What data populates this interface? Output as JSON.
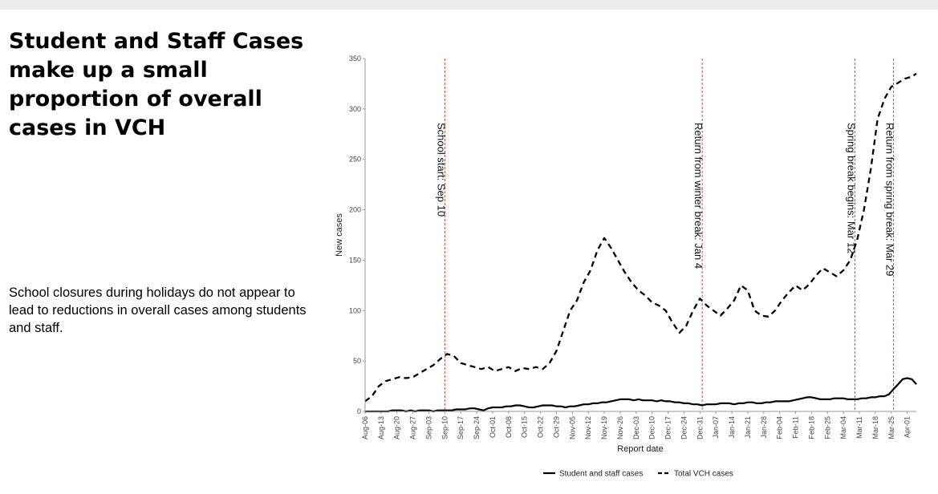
{
  "slide": {
    "title": "Student and Staff Cases make up a small proportion of overall cases in VCH",
    "subtitle": "School closures during holidays do not appear to lead to reductions in overall cases among students and staff."
  },
  "chart_data": {
    "type": "line",
    "xlabel": "Report date",
    "ylabel": "New cases",
    "ylim": [
      0,
      350
    ],
    "yticks": [
      0,
      50,
      100,
      150,
      200,
      250,
      300,
      350
    ],
    "xticks": [
      "Aug-06",
      "Aug-13",
      "Aug-20",
      "Aug-27",
      "Sep-03",
      "Sep-10",
      "Sep-17",
      "Sep-24",
      "Oct-01",
      "Oct-08",
      "Oct-15",
      "Oct-22",
      "Oct-29",
      "Nov-05",
      "Nov-12",
      "Nov-19",
      "Nov-26",
      "Dec-03",
      "Dec-10",
      "Dec-17",
      "Dec-24",
      "Dec-31",
      "Jan-07",
      "Jan-14",
      "Jan-21",
      "Jan-28",
      "Feb-04",
      "Feb-11",
      "Feb-18",
      "Feb-25",
      "Mar-04",
      "Mar-11",
      "Mar-18",
      "Mar-25",
      "Apr-01"
    ],
    "grid": false,
    "legend_position": "bottom",
    "series": [
      {
        "name": "Student and staff cases",
        "line_style": "solid",
        "color": "#000000",
        "x": [
          0,
          2,
          4,
          6,
          8,
          10,
          12,
          14,
          16,
          18,
          20,
          22,
          24,
          26,
          28,
          30,
          32,
          34,
          36,
          38,
          40,
          42,
          44,
          46,
          48,
          50,
          52,
          54,
          56,
          58,
          60,
          62,
          64,
          66,
          68,
          70,
          72,
          74,
          76,
          78,
          80,
          82,
          84,
          86,
          88,
          90,
          92,
          94,
          96,
          98,
          100,
          102,
          104,
          106,
          108,
          110,
          112,
          114,
          116,
          118,
          120,
          122,
          124,
          126,
          128,
          130,
          132,
          134,
          136,
          138,
          140,
          142,
          144,
          146,
          148,
          150,
          152,
          154,
          156,
          158,
          160,
          162,
          164,
          166,
          168,
          170,
          172,
          174,
          176,
          178,
          180,
          182,
          184,
          186,
          188,
          190,
          192,
          194,
          196,
          198,
          200,
          202,
          204,
          206,
          208,
          210,
          212,
          214,
          216,
          218,
          220,
          222,
          224,
          226,
          228,
          230,
          232,
          234,
          236,
          238,
          240,
          242
        ],
        "y": [
          0,
          0,
          0,
          0,
          0,
          0,
          1,
          1,
          1,
          0,
          1,
          0,
          1,
          1,
          1,
          0,
          1,
          1,
          1,
          1,
          2,
          2,
          2,
          3,
          3,
          2,
          1,
          3,
          4,
          4,
          4,
          5,
          5,
          6,
          6,
          5,
          4,
          4,
          5,
          6,
          6,
          6,
          5,
          5,
          4,
          5,
          5,
          6,
          7,
          7,
          8,
          8,
          9,
          9,
          10,
          11,
          12,
          12,
          12,
          11,
          12,
          11,
          11,
          11,
          10,
          11,
          10,
          10,
          9,
          9,
          8,
          8,
          7,
          7,
          6,
          7,
          7,
          7,
          8,
          8,
          8,
          7,
          8,
          8,
          9,
          9,
          8,
          8,
          9,
          9,
          10,
          10,
          10,
          10,
          11,
          12,
          13,
          14,
          14,
          13,
          12,
          12,
          12,
          13,
          13,
          13,
          12,
          12,
          12,
          13,
          13,
          14,
          14,
          15,
          15,
          17,
          22,
          27,
          32,
          33,
          32,
          27
        ]
      },
      {
        "name": "Total VCH cases",
        "line_style": "dashed",
        "color": "#000000",
        "x": [
          0,
          3,
          6,
          9,
          12,
          15,
          18,
          21,
          24,
          27,
          30,
          33,
          36,
          39,
          42,
          45,
          48,
          51,
          54,
          57,
          60,
          63,
          66,
          69,
          72,
          75,
          78,
          81,
          84,
          87,
          90,
          93,
          96,
          99,
          102,
          105,
          108,
          111,
          114,
          117,
          120,
          123,
          126,
          129,
          132,
          135,
          138,
          141,
          144,
          147,
          150,
          153,
          156,
          159,
          162,
          165,
          168,
          171,
          174,
          177,
          180,
          183,
          186,
          189,
          192,
          195,
          198,
          201,
          204,
          207,
          210,
          213,
          216,
          219,
          222,
          225,
          228,
          231,
          234,
          237,
          240,
          242
        ],
        "y": [
          10,
          15,
          25,
          30,
          32,
          34,
          33,
          34,
          38,
          42,
          46,
          52,
          57,
          55,
          48,
          46,
          44,
          42,
          44,
          40,
          42,
          44,
          40,
          43,
          42,
          44,
          42,
          48,
          60,
          80,
          100,
          110,
          128,
          140,
          160,
          172,
          162,
          150,
          138,
          128,
          120,
          115,
          108,
          105,
          100,
          88,
          78,
          85,
          100,
          112,
          105,
          100,
          95,
          102,
          110,
          125,
          120,
          100,
          95,
          94,
          100,
          110,
          118,
          125,
          120,
          126,
          135,
          142,
          138,
          134,
          140,
          150,
          170,
          200,
          240,
          290,
          310,
          322,
          326,
          330,
          332,
          335
        ]
      }
    ],
    "annotations": [
      {
        "x": 35,
        "label": "School start: Sep 10"
      },
      {
        "x": 148,
        "label": "Return from winter break: Jan 4"
      },
      {
        "x": 215,
        "label": "Spring break begins: Mar 12"
      },
      {
        "x": 232,
        "label": "Return from spring break: Mar 29"
      }
    ]
  }
}
